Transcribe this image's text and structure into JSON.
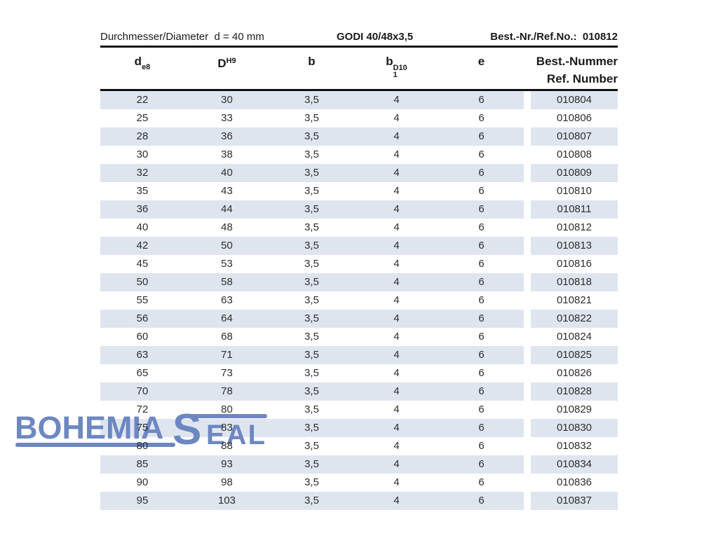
{
  "top_bar": {
    "dimension_label": "Durchmesser/Diameter  d = 40 mm",
    "product_label": "GODI 40/48x3,5",
    "ref_label": "Best.-Nr./Ref.No.:  010812"
  },
  "table": {
    "header": {
      "d_base": "d",
      "d_sub": "e8",
      "D_base": "D",
      "D_sup": "H9",
      "b": "b",
      "b1_base": "b",
      "b1_sub": "1",
      "b1_sup": "D10",
      "e": "e",
      "ref_line1": "Best.-Nummer",
      "ref_line2": "Ref. Number"
    },
    "col_keys": [
      "d",
      "D",
      "b",
      "b1",
      "e",
      "ref-number"
    ],
    "rows": [
      [
        "22",
        "30",
        "3,5",
        "4",
        "6",
        "010804"
      ],
      [
        "25",
        "33",
        "3,5",
        "4",
        "6",
        "010806"
      ],
      [
        "28",
        "36",
        "3,5",
        "4",
        "6",
        "010807"
      ],
      [
        "30",
        "38",
        "3,5",
        "4",
        "6",
        "010808"
      ],
      [
        "32",
        "40",
        "3,5",
        "4",
        "6",
        "010809"
      ],
      [
        "35",
        "43",
        "3,5",
        "4",
        "6",
        "010810"
      ],
      [
        "36",
        "44",
        "3,5",
        "4",
        "6",
        "010811"
      ],
      [
        "40",
        "48",
        "3,5",
        "4",
        "6",
        "010812"
      ],
      [
        "42",
        "50",
        "3,5",
        "4",
        "6",
        "010813"
      ],
      [
        "45",
        "53",
        "3,5",
        "4",
        "6",
        "010816"
      ],
      [
        "50",
        "58",
        "3,5",
        "4",
        "6",
        "010818"
      ],
      [
        "55",
        "63",
        "3,5",
        "4",
        "6",
        "010821"
      ],
      [
        "56",
        "64",
        "3,5",
        "4",
        "6",
        "010822"
      ],
      [
        "60",
        "68",
        "3,5",
        "4",
        "6",
        "010824"
      ],
      [
        "63",
        "71",
        "3,5",
        "4",
        "6",
        "010825"
      ],
      [
        "65",
        "73",
        "3,5",
        "4",
        "6",
        "010826"
      ],
      [
        "70",
        "78",
        "3,5",
        "4",
        "6",
        "010828"
      ],
      [
        "72",
        "80",
        "3,5",
        "4",
        "6",
        "010829"
      ],
      [
        "75",
        "83",
        "3,5",
        "4",
        "6",
        "010830"
      ],
      [
        "80",
        "88",
        "3,5",
        "4",
        "6",
        "010832"
      ],
      [
        "85",
        "93",
        "3,5",
        "4",
        "6",
        "010834"
      ],
      [
        "90",
        "98",
        "3,5",
        "4",
        "6",
        "010836"
      ],
      [
        "95",
        "103",
        "3,5",
        "4",
        "6",
        "010837"
      ]
    ]
  },
  "logo": {
    "word1": "BOHEMIA",
    "word2_initial": "S",
    "word2_rest": "EAL"
  },
  "colors": {
    "row_shade": "#dfe5ef",
    "logo_blue": "#6d87c1",
    "rule_color": "#111111",
    "text_color": "#2d2d2d"
  }
}
